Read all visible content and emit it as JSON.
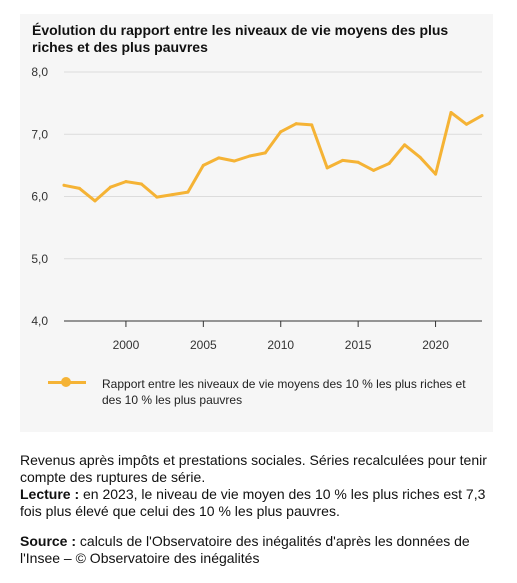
{
  "chart_data": {
    "type": "line",
    "title": "Évolution du rapport entre les niveaux de vie moyens des plus riches et des plus pauvres",
    "xlabel": "",
    "ylabel": "",
    "xlim": [
      1996,
      2023
    ],
    "ylim": [
      4.0,
      8.0
    ],
    "x_ticks": [
      2000,
      2005,
      2010,
      2015,
      2020
    ],
    "y_ticks": [
      "4,0",
      "5,0",
      "6,0",
      "7,0",
      "8,0"
    ],
    "y_tick_values": [
      4,
      5,
      6,
      7,
      8
    ],
    "grid": true,
    "legend": "bottom",
    "series": [
      {
        "name": "Rapport entre les niveaux de vie moyens des 10 % les plus riches et des 10 % les plus pauvres",
        "color": "#f5b335",
        "x": [
          1996,
          1997,
          1998,
          1999,
          2000,
          2001,
          2002,
          2003,
          2004,
          2005,
          2006,
          2007,
          2008,
          2009,
          2010,
          2011,
          2012,
          2013,
          2014,
          2015,
          2016,
          2017,
          2018,
          2019,
          2020,
          2021,
          2022,
          2023
        ],
        "y": [
          6.18,
          6.13,
          5.93,
          6.15,
          6.24,
          6.2,
          5.99,
          6.03,
          6.07,
          6.5,
          6.62,
          6.57,
          6.65,
          6.7,
          7.04,
          7.17,
          7.15,
          6.46,
          6.58,
          6.55,
          6.42,
          6.53,
          6.83,
          6.63,
          6.36,
          7.35,
          7.16,
          7.3
        ]
      }
    ]
  },
  "notes": {
    "line1": "Revenus après impôts et prestations sociales. Séries recalculées pour tenir compte des ruptures de série.",
    "lecture_label": "Lecture :",
    "lecture_text": " en 2023, le niveau de vie moyen des 10 % les plus riches est 7,3 fois plus élevé que celui des 10 % les plus pauvres.",
    "source_label": "Source :",
    "source_text": " calculs de l'Observatoire des inégalités d'après les données de l'Insee – © Observatoire des inégalités"
  }
}
